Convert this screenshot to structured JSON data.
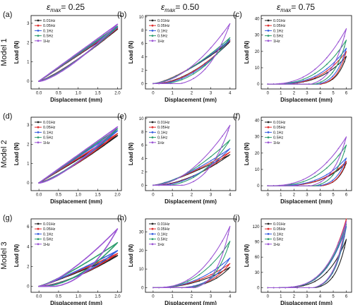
{
  "column_titles": [
    {
      "symbol": "ε",
      "sub": "max",
      "value": "= 0.25"
    },
    {
      "symbol": "ε",
      "sub": "max",
      "value": "= 0.50"
    },
    {
      "symbol": "ε",
      "sub": "max",
      "value": "= 0.75"
    }
  ],
  "row_labels": [
    "Model 1",
    "Model 2",
    "Model 3"
  ],
  "colors": {
    "0.01Hz": "#222222",
    "0.05Hz": "#e03030",
    "0.1Hz": "#3a5fe0",
    "0.5Hz": "#2e9e6e",
    "1Hz": "#9b55d4"
  },
  "chart_data": [
    {
      "panel": "(a)",
      "type": "line",
      "xlabel": "Displacement (mm)",
      "ylabel": "Load (N)",
      "xlim": [
        -0.2,
        2.1
      ],
      "ylim": [
        -0.4,
        3.4
      ],
      "xticks": [
        "0.0",
        "0.5",
        "1.0",
        "1.5",
        "2.0"
      ],
      "yticks": [
        "0",
        "1",
        "2",
        "3"
      ],
      "series": [
        {
          "name": "0.01Hz",
          "peak": 2.7,
          "loop": 0.07,
          "expo": 1.0
        },
        {
          "name": "0.05Hz",
          "peak": 2.75,
          "loop": 0.08,
          "expo": 1.0
        },
        {
          "name": "0.1Hz",
          "peak": 2.8,
          "loop": 0.09,
          "expo": 1.0
        },
        {
          "name": "0.5Hz",
          "peak": 2.85,
          "loop": 0.1,
          "expo": 1.0
        },
        {
          "name": "1Hz",
          "peak": 2.95,
          "loop": 0.12,
          "expo": 1.0
        }
      ]
    },
    {
      "panel": "(b)",
      "type": "line",
      "xlabel": "Displacement (mm)",
      "ylabel": "Load (N)",
      "xlim": [
        -0.4,
        4.3
      ],
      "ylim": [
        -0.8,
        10.2
      ],
      "xticks": [
        "0",
        "1",
        "2",
        "3",
        "4"
      ],
      "yticks": [
        "0",
        "2",
        "4",
        "6",
        "8",
        "10"
      ],
      "series": [
        {
          "name": "0.01Hz",
          "peak": 6.3,
          "loop": 0.1,
          "expo": 1.4
        },
        {
          "name": "0.05Hz",
          "peak": 6.5,
          "loop": 0.12,
          "expo": 1.4
        },
        {
          "name": "0.1Hz",
          "peak": 6.6,
          "loop": 0.14,
          "expo": 1.45
        },
        {
          "name": "0.5Hz",
          "peak": 6.9,
          "loop": 0.18,
          "expo": 1.5
        },
        {
          "name": "1Hz",
          "peak": 9.0,
          "loop": 0.3,
          "expo": 1.8
        }
      ]
    },
    {
      "panel": "(c)",
      "type": "line",
      "xlabel": "Displacement (mm)",
      "ylabel": "Load (N)",
      "xlim": [
        -0.5,
        6.4
      ],
      "ylim": [
        -3,
        42
      ],
      "xticks": [
        "0",
        "1",
        "2",
        "3",
        "4",
        "5",
        "6"
      ],
      "yticks": [
        "0",
        "10",
        "20",
        "30",
        "40"
      ],
      "series": [
        {
          "name": "0.01Hz",
          "peak": 17,
          "loop": 0.55,
          "expo": 3.2
        },
        {
          "name": "0.05Hz",
          "peak": 20,
          "loop": 0.55,
          "expo": 3.2
        },
        {
          "name": "0.1Hz",
          "peak": 22,
          "loop": 0.5,
          "expo": 3.0
        },
        {
          "name": "0.5Hz",
          "peak": 27,
          "loop": 0.45,
          "expo": 2.8
        },
        {
          "name": "1Hz",
          "peak": 34,
          "loop": 0.4,
          "expo": 2.6
        }
      ]
    },
    {
      "panel": "(d)",
      "type": "line",
      "xlabel": "Displacement (mm)",
      "ylabel": "Load (N)",
      "xlim": [
        -0.2,
        2.1
      ],
      "ylim": [
        -0.4,
        3.4
      ],
      "xticks": [
        "0.0",
        "0.5",
        "1.0",
        "1.5",
        "2.0"
      ],
      "yticks": [
        "0",
        "1",
        "2",
        "3"
      ],
      "series": [
        {
          "name": "0.01Hz",
          "peak": 2.45,
          "loop": 0.07,
          "expo": 1.0
        },
        {
          "name": "0.05Hz",
          "peak": 2.55,
          "loop": 0.08,
          "expo": 1.0
        },
        {
          "name": "0.1Hz",
          "peak": 2.7,
          "loop": 0.09,
          "expo": 1.0
        },
        {
          "name": "0.5Hz",
          "peak": 2.8,
          "loop": 0.1,
          "expo": 1.0
        },
        {
          "name": "1Hz",
          "peak": 2.9,
          "loop": 0.12,
          "expo": 1.0
        }
      ]
    },
    {
      "panel": "(e)",
      "type": "line",
      "xlabel": "Displacement (mm)",
      "ylabel": "Load (N)",
      "xlim": [
        -0.4,
        4.3
      ],
      "ylim": [
        -0.8,
        10.2
      ],
      "xticks": [
        "0",
        "1",
        "2",
        "3",
        "4"
      ],
      "yticks": [
        "0",
        "2",
        "4",
        "6",
        "8",
        "10"
      ],
      "series": [
        {
          "name": "0.01Hz",
          "peak": 4.6,
          "loop": 0.12,
          "expo": 1.3
        },
        {
          "name": "0.05Hz",
          "peak": 5.0,
          "loop": 0.14,
          "expo": 1.35
        },
        {
          "name": "0.1Hz",
          "peak": 5.5,
          "loop": 0.16,
          "expo": 1.4
        },
        {
          "name": "0.5Hz",
          "peak": 6.8,
          "loop": 0.2,
          "expo": 1.6
        },
        {
          "name": "1Hz",
          "peak": 9.0,
          "loop": 0.32,
          "expo": 1.9
        }
      ]
    },
    {
      "panel": "(f)",
      "type": "line",
      "xlabel": "Displacement (mm)",
      "ylabel": "Load (N)",
      "xlim": [
        -0.5,
        6.4
      ],
      "ylim": [
        -3,
        42
      ],
      "xticks": [
        "0",
        "1",
        "2",
        "3",
        "4",
        "5",
        "6"
      ],
      "yticks": [
        "0",
        "10",
        "20",
        "30",
        "40"
      ],
      "series": [
        {
          "name": "0.01Hz",
          "peak": 14,
          "loop": 0.55,
          "expo": 3.4
        },
        {
          "name": "0.05Hz",
          "peak": 15,
          "loop": 0.55,
          "expo": 3.4
        },
        {
          "name": "0.1Hz",
          "peak": 17,
          "loop": 0.5,
          "expo": 3.2
        },
        {
          "name": "0.5Hz",
          "peak": 25,
          "loop": 0.45,
          "expo": 2.9
        },
        {
          "name": "1Hz",
          "peak": 30,
          "loop": 0.4,
          "expo": 2.6
        }
      ]
    },
    {
      "panel": "(g)",
      "type": "line",
      "xlabel": "Displacement (mm)",
      "ylabel": "Load (N)",
      "xlim": [
        -0.2,
        2.1
      ],
      "ylim": [
        -0.6,
        6.8
      ],
      "xticks": [
        "0.0",
        "0.5",
        "1.0",
        "1.5",
        "2.0"
      ],
      "yticks": [
        "0",
        "2",
        "4",
        "6"
      ],
      "series": [
        {
          "name": "0.01Hz",
          "peak": 3.1,
          "loop": 0.12,
          "expo": 1.1
        },
        {
          "name": "0.05Hz",
          "peak": 3.3,
          "loop": 0.14,
          "expo": 1.1
        },
        {
          "name": "0.1Hz",
          "peak": 3.6,
          "loop": 0.15,
          "expo": 1.15
        },
        {
          "name": "0.5Hz",
          "peak": 4.4,
          "loop": 0.18,
          "expo": 1.2
        },
        {
          "name": "1Hz",
          "peak": 5.8,
          "loop": 0.25,
          "expo": 1.4
        }
      ]
    },
    {
      "panel": "(h)",
      "type": "line",
      "xlabel": "Displacement (mm)",
      "ylabel": "Load (N)",
      "xlim": [
        -0.4,
        4.3
      ],
      "ylim": [
        -2.5,
        37
      ],
      "xticks": [
        "0",
        "1",
        "2",
        "3",
        "4"
      ],
      "yticks": [
        "0",
        "10",
        "20",
        "30"
      ],
      "series": [
        {
          "name": "0.01Hz",
          "peak": 11,
          "loop": 0.25,
          "expo": 2.2
        },
        {
          "name": "0.05Hz",
          "peak": 13,
          "loop": 0.25,
          "expo": 2.2
        },
        {
          "name": "0.1Hz",
          "peak": 16,
          "loop": 0.25,
          "expo": 2.3
        },
        {
          "name": "0.5Hz",
          "peak": 25,
          "loop": 0.35,
          "expo": 2.5
        },
        {
          "name": "1Hz",
          "peak": 33,
          "loop": 0.4,
          "expo": 2.6
        }
      ]
    },
    {
      "panel": "(i)",
      "type": "line",
      "xlabel": "Displacement (mm)",
      "ylabel": "Load (N)",
      "xlim": [
        -0.5,
        6.4
      ],
      "ylim": [
        -9,
        135
      ],
      "xticks": [
        "0",
        "1",
        "2",
        "3",
        "4",
        "5",
        "6"
      ],
      "yticks": [
        "0",
        "30",
        "60",
        "90",
        "120"
      ],
      "series": [
        {
          "name": "0.01Hz",
          "peak": 95,
          "loop": 0.3,
          "expo": 4.0
        },
        {
          "name": "0.05Hz",
          "peak": 135,
          "loop": 0.28,
          "expo": 4.0
        },
        {
          "name": "0.1Hz",
          "peak": 120,
          "loop": 0.28,
          "expo": 3.9
        },
        {
          "name": "0.5Hz",
          "peak": 125,
          "loop": 0.28,
          "expo": 3.9
        },
        {
          "name": "1Hz",
          "peak": 130,
          "loop": 0.28,
          "expo": 3.8
        }
      ]
    }
  ]
}
